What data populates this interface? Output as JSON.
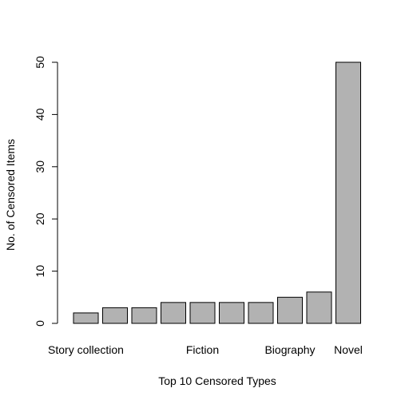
{
  "chart_data": {
    "type": "bar",
    "title": "",
    "xlabel": "Top 10 Censored Types",
    "ylabel": "No. of Censored Items",
    "categories": [
      "Story collection",
      "",
      "",
      "",
      "Fiction",
      "",
      "",
      "Biography",
      "",
      "Novel"
    ],
    "values": [
      2,
      3,
      3,
      4,
      4,
      4,
      4,
      5,
      6,
      50
    ],
    "ylim": [
      0,
      50
    ],
    "yticks": [
      0,
      10,
      20,
      30,
      40,
      50
    ],
    "grid": false,
    "legend": "none",
    "bar_fill": "#b2b2b2",
    "bar_stroke": "#000000"
  }
}
